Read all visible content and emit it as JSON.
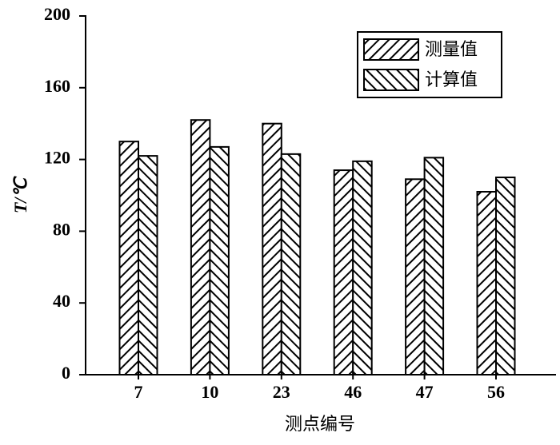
{
  "chart_data": {
    "type": "bar",
    "x_label": "测点编号",
    "y_label": "T/℃",
    "categories": [
      "7",
      "10",
      "23",
      "46",
      "47",
      "56"
    ],
    "series": [
      {
        "name": "测量值",
        "color": "#000000",
        "hatch": "/",
        "values": [
          130,
          142,
          140,
          114,
          109,
          102
        ]
      },
      {
        "name": "计算值",
        "color": "#000000",
        "hatch": "\\",
        "values": [
          122,
          127,
          123,
          119,
          121,
          110
        ]
      }
    ],
    "ylim": [
      0,
      200
    ],
    "yticks": [
      0,
      40,
      80,
      120,
      160,
      200
    ],
    "legend": "upper right"
  }
}
